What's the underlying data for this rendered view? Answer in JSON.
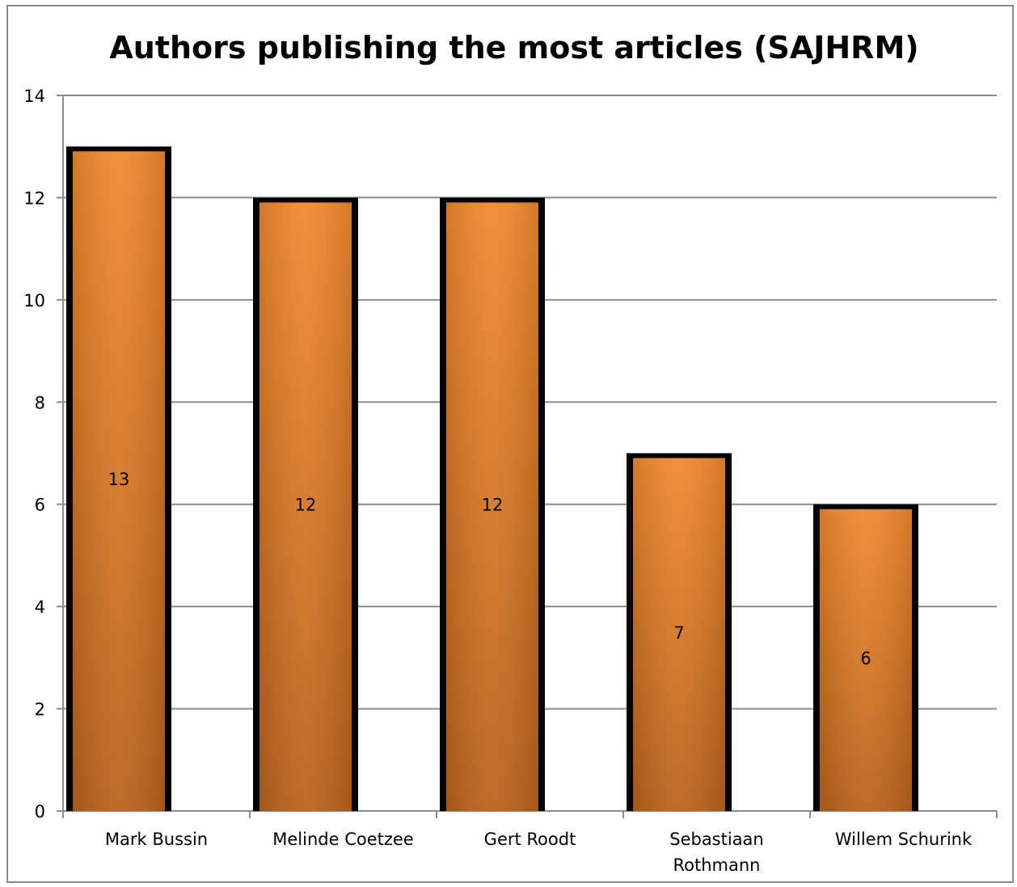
{
  "chart_data": {
    "type": "bar",
    "title": "Authors publishing the most articles (SAJHRM)",
    "xlabel": "",
    "ylabel": "",
    "categories": [
      "Mark Bussin",
      "Melinde Coetzee",
      "Gert Roodt",
      "Sebastiaan Rothmann",
      "Willem Schurink"
    ],
    "category_lines": [
      [
        "Mark Bussin"
      ],
      [
        "Melinde Coetzee"
      ],
      [
        "Gert Roodt"
      ],
      [
        "Sebastiaan",
        "Rothmann"
      ],
      [
        "Willem Schurink"
      ]
    ],
    "values": [
      13,
      12,
      12,
      7,
      6
    ],
    "data_labels": [
      "13",
      "12",
      "12",
      "7",
      "6"
    ],
    "ylim": [
      0,
      14
    ],
    "yticks": [
      0,
      2,
      4,
      6,
      8,
      10,
      12,
      14
    ],
    "ytick_labels": [
      "0",
      "2",
      "4",
      "6",
      "8",
      "10",
      "12",
      "14"
    ],
    "grid": true,
    "legend": "none",
    "colors": {
      "bar_light": "#f0892e",
      "bar_dark": "#b9621c",
      "bar_border": "#000000",
      "grid": "#8c8c8c"
    }
  }
}
